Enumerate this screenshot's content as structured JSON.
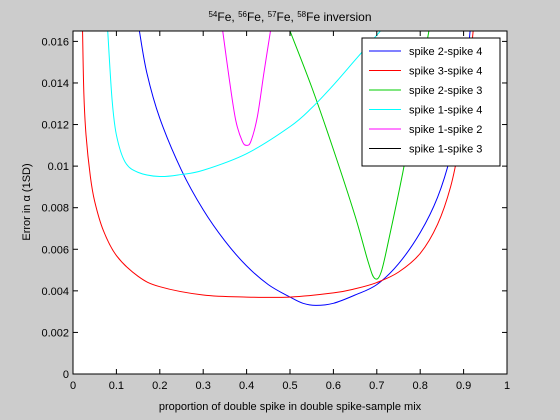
{
  "chart_data": {
    "type": "line",
    "title": "54Fe, 56Fe, 57Fe, 58Fe inversion",
    "title_parts": [
      {
        "sup": "54",
        "text": "Fe, "
      },
      {
        "sup": "56",
        "text": "Fe, "
      },
      {
        "sup": "57",
        "text": "Fe, "
      },
      {
        "sup": "58",
        "text": "Fe inversion"
      }
    ],
    "xlabel": "proportion of double spike in double spike-sample mix",
    "ylabel": "Error in α (1SD)",
    "xlim": [
      0,
      1
    ],
    "ylim": [
      0,
      0.0165
    ],
    "xticks": [
      0,
      0.1,
      0.2,
      0.3,
      0.4,
      0.5,
      0.6,
      0.7,
      0.8,
      0.9,
      1
    ],
    "xtick_labels": [
      "0",
      "0.1",
      "0.2",
      "0.3",
      "0.4",
      "0.5",
      "0.6",
      "0.7",
      "0.8",
      "0.9",
      "1"
    ],
    "yticks": [
      0,
      0.002,
      0.004,
      0.006,
      0.008,
      0.01,
      0.012,
      0.014,
      0.016
    ],
    "ytick_labels": [
      "0",
      "0.002",
      "0.004",
      "0.006",
      "0.008",
      "0.01",
      "0.012",
      "0.014",
      "0.016"
    ],
    "grid": false,
    "legend_position": "top-right",
    "series": [
      {
        "name": "spike 2-spike 4",
        "color": "#0000ff",
        "x": [
          0.153,
          0.17,
          0.2,
          0.25,
          0.3,
          0.35,
          0.4,
          0.45,
          0.5,
          0.53,
          0.56,
          0.6,
          0.65,
          0.7,
          0.75,
          0.8,
          0.84,
          0.87,
          0.9,
          0.915
        ],
        "y": [
          0.0165,
          0.0145,
          0.0123,
          0.0098,
          0.0079,
          0.0064,
          0.0052,
          0.0043,
          0.0037,
          0.0034,
          0.0033,
          0.0034,
          0.0038,
          0.0043,
          0.0053,
          0.0068,
          0.0085,
          0.0105,
          0.0135,
          0.0165
        ]
      },
      {
        "name": "spike 3-spike 4",
        "color": "#ff0000",
        "x": [
          0.022,
          0.025,
          0.03,
          0.04,
          0.05,
          0.07,
          0.1,
          0.15,
          0.2,
          0.3,
          0.4,
          0.5,
          0.6,
          0.65,
          0.7,
          0.75,
          0.8,
          0.84,
          0.87,
          0.89,
          0.905,
          0.915,
          0.922
        ],
        "y": [
          0.0165,
          0.0135,
          0.0115,
          0.0095,
          0.0083,
          0.0069,
          0.0057,
          0.0047,
          0.0042,
          0.0038,
          0.0037,
          0.0037,
          0.0039,
          0.0041,
          0.0044,
          0.0049,
          0.0058,
          0.0072,
          0.009,
          0.011,
          0.0132,
          0.015,
          0.0165
        ]
      },
      {
        "name": "spike 2-spike 3",
        "color": "#00cc00",
        "x": [
          0.5,
          0.55,
          0.6,
          0.65,
          0.68,
          0.695,
          0.71,
          0.73,
          0.76,
          0.79,
          0.82
        ],
        "y": [
          0.0165,
          0.0138,
          0.0108,
          0.0076,
          0.0054,
          0.0046,
          0.0049,
          0.0067,
          0.0097,
          0.013,
          0.0165
        ]
      },
      {
        "name": "spike 1-spike 4",
        "color": "#00ffff",
        "x": [
          0.08,
          0.09,
          0.1,
          0.12,
          0.15,
          0.2,
          0.25,
          0.3,
          0.4,
          0.5,
          0.55,
          0.6,
          0.65,
          0.7,
          0.75
        ],
        "y": [
          0.0165,
          0.0132,
          0.0115,
          0.0102,
          0.0097,
          0.0095,
          0.0096,
          0.0098,
          0.0106,
          0.0119,
          0.0128,
          0.0139,
          0.0151,
          0.0163,
          0.0175
        ]
      },
      {
        "name": "spike 1-spike 2",
        "color": "#ff00ff",
        "x": [
          0.345,
          0.36,
          0.375,
          0.39,
          0.4,
          0.41,
          0.425,
          0.44,
          0.455
        ],
        "y": [
          0.0165,
          0.0142,
          0.0122,
          0.0112,
          0.011,
          0.0112,
          0.0124,
          0.0145,
          0.0165
        ]
      },
      {
        "name": "spike 1-spike 3",
        "color": "#000000",
        "x": [],
        "y": []
      }
    ]
  }
}
